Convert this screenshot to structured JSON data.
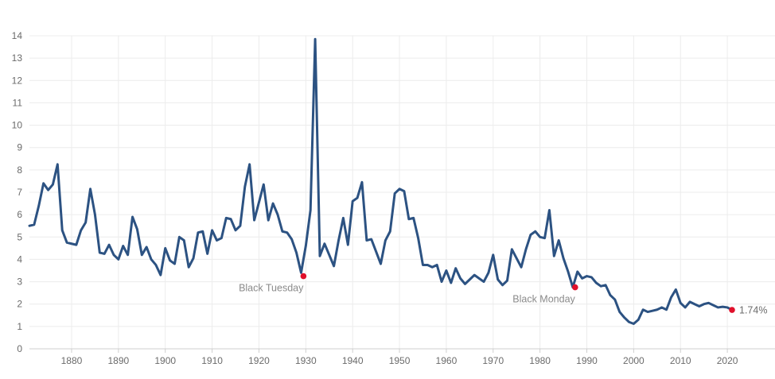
{
  "chart_data": {
    "type": "line",
    "title": "",
    "xlabel": "",
    "ylabel": "",
    "xlim": [
      1871,
      2021
    ],
    "ylim": [
      0,
      14
    ],
    "x_ticks": [
      "1880",
      "1890",
      "1900",
      "1910",
      "1920",
      "1930",
      "1940",
      "1950",
      "1960",
      "1970",
      "1980",
      "1990",
      "2000",
      "2010",
      "2020"
    ],
    "y_ticks": [
      "0",
      "1",
      "2",
      "3",
      "4",
      "5",
      "6",
      "7",
      "8",
      "9",
      "10",
      "11",
      "12",
      "13",
      "14"
    ],
    "grid": true,
    "line_color": "#2c5282",
    "marker_color": "#e0102b",
    "series": [
      {
        "x": [
          1871,
          1872,
          1873,
          1874,
          1875,
          1876,
          1877,
          1878,
          1879,
          1880,
          1881,
          1882,
          1883,
          1884,
          1885,
          1886,
          1887,
          1888,
          1889,
          1890,
          1891,
          1892,
          1893,
          1894,
          1895,
          1896,
          1897,
          1898,
          1899,
          1900,
          1901,
          1902,
          1903,
          1904,
          1905,
          1906,
          1907,
          1908,
          1909,
          1910,
          1911,
          1912,
          1913,
          1914,
          1915,
          1916,
          1917,
          1918,
          1919,
          1920,
          1921,
          1922,
          1923,
          1924,
          1925,
          1926,
          1927,
          1928,
          1929,
          1930,
          1931,
          1932,
          1933,
          1934,
          1935,
          1936,
          1937,
          1938,
          1939,
          1940,
          1941,
          1942,
          1943,
          1944,
          1945,
          1946,
          1947,
          1948,
          1949,
          1950,
          1951,
          1952,
          1953,
          1954,
          1955,
          1956,
          1957,
          1958,
          1959,
          1960,
          1961,
          1962,
          1963,
          1964,
          1965,
          1966,
          1967,
          1968,
          1969,
          1970,
          1971,
          1972,
          1973,
          1974,
          1975,
          1976,
          1977,
          1978,
          1979,
          1980,
          1981,
          1982,
          1983,
          1984,
          1985,
          1986,
          1987,
          1988,
          1989,
          1990,
          1991,
          1992,
          1993,
          1994,
          1995,
          1996,
          1997,
          1998,
          1999,
          2000,
          2001,
          2002,
          2003,
          2004,
          2005,
          2006,
          2007,
          2008,
          2009,
          2010,
          2011,
          2012,
          2013,
          2014,
          2015,
          2016,
          2017,
          2018,
          2019,
          2020,
          2021
        ],
        "values": [
          5.5,
          5.55,
          6.4,
          7.4,
          7.1,
          7.35,
          8.25,
          5.3,
          4.75,
          4.7,
          4.65,
          5.3,
          5.65,
          7.15,
          6.0,
          4.3,
          4.25,
          4.65,
          4.2,
          4.0,
          4.6,
          4.2,
          5.9,
          5.35,
          4.2,
          4.55,
          4.0,
          3.75,
          3.3,
          4.5,
          3.95,
          3.8,
          5.0,
          4.85,
          3.65,
          4.05,
          5.2,
          5.25,
          4.25,
          5.3,
          4.85,
          4.95,
          5.85,
          5.8,
          5.3,
          5.5,
          7.25,
          8.25,
          5.75,
          6.55,
          7.35,
          5.75,
          6.5,
          6.0,
          5.25,
          5.2,
          4.9,
          4.3,
          3.4,
          4.6,
          6.2,
          13.85,
          4.15,
          4.7,
          4.2,
          3.7,
          4.85,
          5.85,
          4.65,
          6.6,
          6.75,
          7.45,
          4.85,
          4.9,
          4.35,
          3.8,
          4.85,
          5.25,
          6.95,
          7.15,
          7.05,
          5.8,
          5.85,
          4.95,
          3.75,
          3.75,
          3.65,
          3.75,
          3.0,
          3.5,
          2.95,
          3.6,
          3.15,
          2.9,
          3.1,
          3.3,
          3.15,
          3.0,
          3.4,
          4.2,
          3.1,
          2.85,
          3.05,
          4.45,
          4.05,
          3.65,
          4.45,
          5.1,
          5.25,
          5.0,
          4.95,
          6.2,
          4.15,
          4.85,
          4.05,
          3.45,
          2.75,
          3.45,
          3.15,
          3.25,
          3.2,
          2.95,
          2.8,
          2.85,
          2.4,
          2.2,
          1.65,
          1.4,
          1.2,
          1.12,
          1.3,
          1.75,
          1.65,
          1.7,
          1.75,
          1.85,
          1.75,
          2.3,
          2.65,
          2.05,
          1.85,
          2.1,
          2.0,
          1.9,
          2.0,
          2.05,
          1.95,
          1.85,
          1.88,
          1.85,
          1.74
        ]
      }
    ],
    "annotations": [
      {
        "label": "Black Tuesday",
        "x": 1929.5,
        "y": 3.25
      },
      {
        "label": "Black Monday",
        "x": 1987.5,
        "y": 2.75
      }
    ],
    "last_value": {
      "label": "1.74%",
      "x": 2021,
      "y": 1.74
    }
  }
}
